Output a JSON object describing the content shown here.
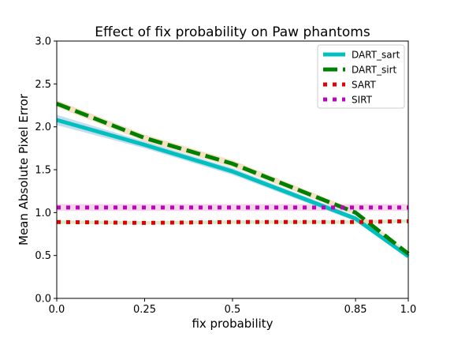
{
  "chart_data": {
    "type": "line",
    "title": "Effect of fix probability on Paw phantoms",
    "xlabel": "fix probability",
    "ylabel": "Mean Absolute Pixel Error",
    "xlim": [
      0.0,
      1.0
    ],
    "ylim": [
      0.0,
      3.0
    ],
    "xticks": [
      0.0,
      0.25,
      0.5,
      0.85,
      1.0
    ],
    "xtick_labels": [
      "0.0",
      "0.25",
      "0.5",
      "0.85",
      "1.0"
    ],
    "yticks": [
      0.0,
      0.5,
      1.0,
      1.5,
      2.0,
      2.5,
      3.0
    ],
    "ytick_labels": [
      "0.0",
      "0.5",
      "1.0",
      "1.5",
      "2.0",
      "2.5",
      "3.0"
    ],
    "x": [
      0.0,
      0.25,
      0.5,
      0.85,
      1.0
    ],
    "grid": false,
    "legend_position": "top-right",
    "series": [
      {
        "name": "DART_sart",
        "values": [
          2.08,
          1.79,
          1.48,
          0.93,
          0.49
        ],
        "band": [
          0.06,
          0.04,
          0.04,
          0.03,
          0.02
        ],
        "color": "#00bfbf",
        "band_color": "#b9d4ea",
        "style": "solid"
      },
      {
        "name": "DART_sirt",
        "values": [
          2.27,
          1.87,
          1.57,
          1.0,
          0.52
        ],
        "band": [
          0.04,
          0.04,
          0.04,
          0.03,
          0.02
        ],
        "color": "#008000",
        "band_color": "#f5d9b5",
        "style": "dashed"
      },
      {
        "name": "SART",
        "values": [
          0.89,
          0.88,
          0.89,
          0.89,
          0.9
        ],
        "band": [
          0.02,
          0.02,
          0.02,
          0.02,
          0.02
        ],
        "color": "#e00000",
        "band_color": "#cfe4bf",
        "style": "dotted"
      },
      {
        "name": "SIRT",
        "values": [
          1.06,
          1.06,
          1.06,
          1.06,
          1.06
        ],
        "band": [
          0.04,
          0.04,
          0.04,
          0.04,
          0.04
        ],
        "color": "#bf00bf",
        "band_color": "#f2cbe0",
        "style": "dotted"
      }
    ]
  }
}
